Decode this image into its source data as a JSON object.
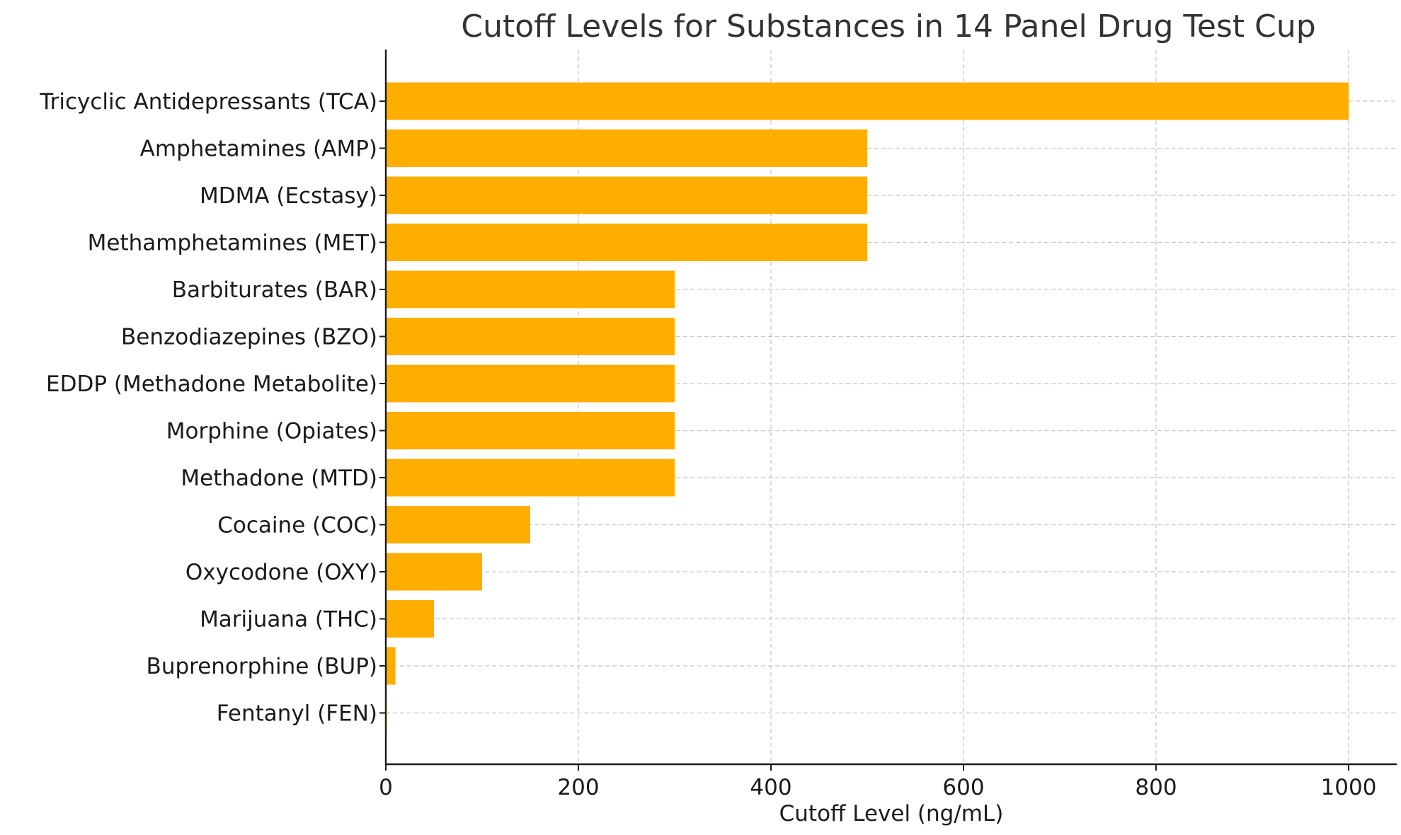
{
  "chart_data": {
    "type": "bar",
    "orientation": "horizontal",
    "title": "Cutoff Levels for Substances in 14 Panel Drug Test Cup",
    "xlabel": "Cutoff Level (ng/mL)",
    "ylabel": "",
    "xlim": [
      0,
      1050
    ],
    "xticks": [
      0,
      200,
      400,
      600,
      800,
      1000
    ],
    "grid": true,
    "bar_color": "#ffae00",
    "categories": [
      "Tricyclic Antidepressants (TCA)",
      "Amphetamines (AMP)",
      "MDMA (Ecstasy)",
      "Methamphetamines (MET)",
      "Barbiturates (BAR)",
      "Benzodiazepines (BZO)",
      "EDDP (Methadone Metabolite)",
      "Morphine (Opiates)",
      "Methadone (MTD)",
      "Cocaine (COC)",
      "Oxycodone (OXY)",
      "Marijuana (THC)",
      "Buprenorphine (BUP)",
      "Fentanyl (FEN)"
    ],
    "values": [
      1000,
      500,
      500,
      500,
      300,
      300,
      300,
      300,
      300,
      150,
      100,
      50,
      10,
      1
    ]
  }
}
